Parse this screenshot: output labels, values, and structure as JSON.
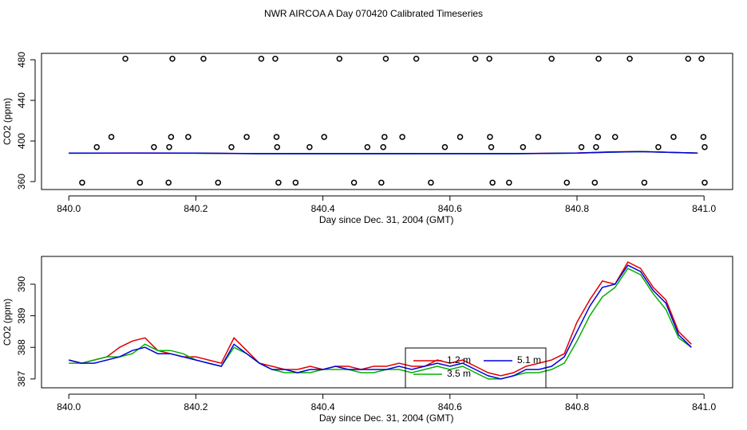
{
  "chart_data": [
    {
      "type": "scatter",
      "title": "NWR AIRCOA A  Day 070420  Calibrated Timeseries",
      "x_label": "Day since Dec. 31, 2004 (GMT)",
      "y_label": "CO2 (ppm)",
      "xlim": [
        839.957,
        841.045
      ],
      "ylim": [
        352.2,
        486.3
      ],
      "xticks": [
        {
          "value": 840,
          "label": "840.0"
        },
        840.2,
        840.4,
        840.6,
        840.8,
        {
          "value": 841,
          "label": "841.0"
        }
      ],
      "yticks": [
        360,
        400,
        440,
        480
      ],
      "series": [
        {
          "style": "points",
          "color": "#000000",
          "x": [
            840.089,
            840.163,
            840.212,
            840.303,
            840.325,
            840.426,
            840.499,
            840.547,
            840.64,
            840.662,
            840.76,
            840.834,
            840.883,
            840.975,
            840.996,
            840.067,
            840.161,
            840.188,
            840.28,
            840.327,
            840.402,
            840.497,
            840.525,
            840.616,
            840.663,
            840.739,
            840.833,
            840.86,
            840.952,
            840.999,
            840.044,
            840.134,
            840.158,
            840.256,
            840.328,
            840.379,
            840.47,
            840.495,
            840.592,
            840.665,
            840.715,
            840.807,
            840.83,
            840.928,
            841.001,
            840.021,
            840.112,
            840.157,
            840.235,
            840.33,
            840.357,
            840.449,
            840.492,
            840.57,
            840.667,
            840.693,
            840.784,
            840.828,
            840.906,
            841.001
          ],
          "values": [
            481,
            481,
            481,
            481,
            481,
            481,
            481,
            481,
            481,
            481,
            481,
            481,
            481,
            481,
            481,
            404,
            404,
            404,
            404,
            404,
            404,
            404,
            404,
            404,
            404,
            404,
            404,
            404,
            404,
            404,
            394,
            394,
            394,
            394,
            394,
            394,
            394,
            394,
            394,
            394,
            394,
            394,
            394,
            394,
            394,
            359,
            359,
            359,
            359,
            359,
            359,
            359,
            359,
            359,
            359,
            359,
            359,
            359,
            359,
            359
          ]
        },
        {
          "style": "line",
          "color": "#e00000",
          "x": [
            840,
            840.1,
            840.2,
            840.3,
            840.4,
            840.5,
            840.6,
            840.7,
            840.8,
            840.85,
            840.9,
            840.99
          ],
          "values": [
            388,
            388.2,
            388,
            387.6,
            387.6,
            387.6,
            387.6,
            387.6,
            388.2,
            389.2,
            389.6,
            388
          ]
        },
        {
          "style": "line",
          "color": "#00b000",
          "x": [
            840,
            840.1,
            840.2,
            840.3,
            840.4,
            840.5,
            840.6,
            840.7,
            840.8,
            840.85,
            840.9,
            840.99
          ],
          "values": [
            387.9,
            388,
            387.9,
            387.5,
            387.4,
            387.4,
            387.5,
            387.4,
            388,
            389,
            389.5,
            388
          ]
        },
        {
          "style": "line",
          "color": "#0000e0",
          "x": [
            840,
            840.1,
            840.2,
            840.3,
            840.4,
            840.5,
            840.6,
            840.7,
            840.8,
            840.85,
            840.9,
            840.99
          ],
          "values": [
            388,
            388,
            388,
            387.5,
            387.5,
            387.5,
            387.5,
            387.5,
            388,
            389,
            389.5,
            388
          ]
        }
      ]
    },
    {
      "type": "line",
      "x_label": "Day since Dec. 31, 2004 (GMT)",
      "y_label": "CO2 (ppm)",
      "xlim": [
        839.957,
        841.045
      ],
      "ylim": [
        386.72,
        390.88
      ],
      "xticks": [
        {
          "value": 840,
          "label": "840.0"
        },
        840.2,
        840.4,
        840.6,
        840.8,
        {
          "value": 841,
          "label": "841.0"
        }
      ],
      "yticks": [
        387,
        388,
        389,
        390
      ],
      "legend": "bottom",
      "x": [
        840,
        840.02,
        840.04,
        840.06,
        840.08,
        840.1,
        840.12,
        840.14,
        840.16,
        840.18,
        840.2,
        840.22,
        840.24,
        840.26,
        840.28,
        840.3,
        840.32,
        840.34,
        840.36,
        840.38,
        840.4,
        840.42,
        840.44,
        840.46,
        840.48,
        840.5,
        840.52,
        840.54,
        840.56,
        840.58,
        840.6,
        840.62,
        840.64,
        840.66,
        840.68,
        840.7,
        840.72,
        840.74,
        840.76,
        840.78,
        840.8,
        840.82,
        840.84,
        840.86,
        840.88,
        840.9,
        840.92,
        840.94,
        840.96,
        840.98
      ],
      "series": [
        {
          "name": "1.2 m",
          "color": "#e00000",
          "values": [
            387.6,
            387.5,
            387.6,
            387.7,
            388.0,
            388.2,
            388.3,
            387.9,
            387.8,
            387.7,
            387.7,
            387.6,
            387.5,
            388.3,
            387.9,
            387.5,
            387.4,
            387.3,
            387.3,
            387.4,
            387.3,
            387.4,
            387.4,
            387.3,
            387.4,
            387.4,
            387.5,
            387.4,
            387.4,
            387.6,
            387.5,
            387.6,
            387.4,
            387.2,
            387.1,
            387.2,
            387.4,
            387.5,
            387.6,
            387.8,
            388.8,
            389.5,
            390.1,
            390.0,
            390.7,
            390.5,
            389.9,
            389.5,
            388.5,
            388.1
          ]
        },
        {
          "name": "3.5 m",
          "color": "#00b000",
          "values": [
            387.5,
            387.5,
            387.6,
            387.7,
            387.7,
            387.8,
            388.1,
            387.9,
            387.9,
            387.8,
            387.6,
            387.5,
            387.4,
            388.0,
            387.8,
            387.5,
            387.3,
            387.2,
            387.2,
            387.2,
            387.3,
            387.3,
            387.3,
            387.2,
            387.2,
            387.3,
            387.3,
            387.2,
            387.3,
            387.4,
            387.3,
            387.4,
            387.2,
            387.0,
            387.0,
            387.1,
            387.2,
            387.2,
            387.3,
            387.5,
            388.2,
            389.0,
            389.6,
            389.9,
            390.5,
            390.3,
            389.7,
            389.2,
            388.3,
            388.0
          ]
        },
        {
          "name": "5.1 m",
          "color": "#0000e0",
          "values": [
            387.6,
            387.5,
            387.5,
            387.6,
            387.7,
            387.9,
            388.0,
            387.8,
            387.8,
            387.7,
            387.6,
            387.5,
            387.4,
            388.1,
            387.8,
            387.5,
            387.3,
            387.3,
            387.2,
            387.3,
            387.3,
            387.4,
            387.3,
            387.3,
            387.3,
            387.3,
            387.4,
            387.3,
            387.4,
            387.5,
            387.4,
            387.5,
            387.3,
            387.1,
            387.0,
            387.1,
            387.3,
            387.3,
            387.4,
            387.7,
            388.5,
            389.3,
            389.9,
            390.0,
            390.6,
            390.4,
            389.8,
            389.4,
            388.4,
            388.0
          ]
        }
      ]
    }
  ]
}
